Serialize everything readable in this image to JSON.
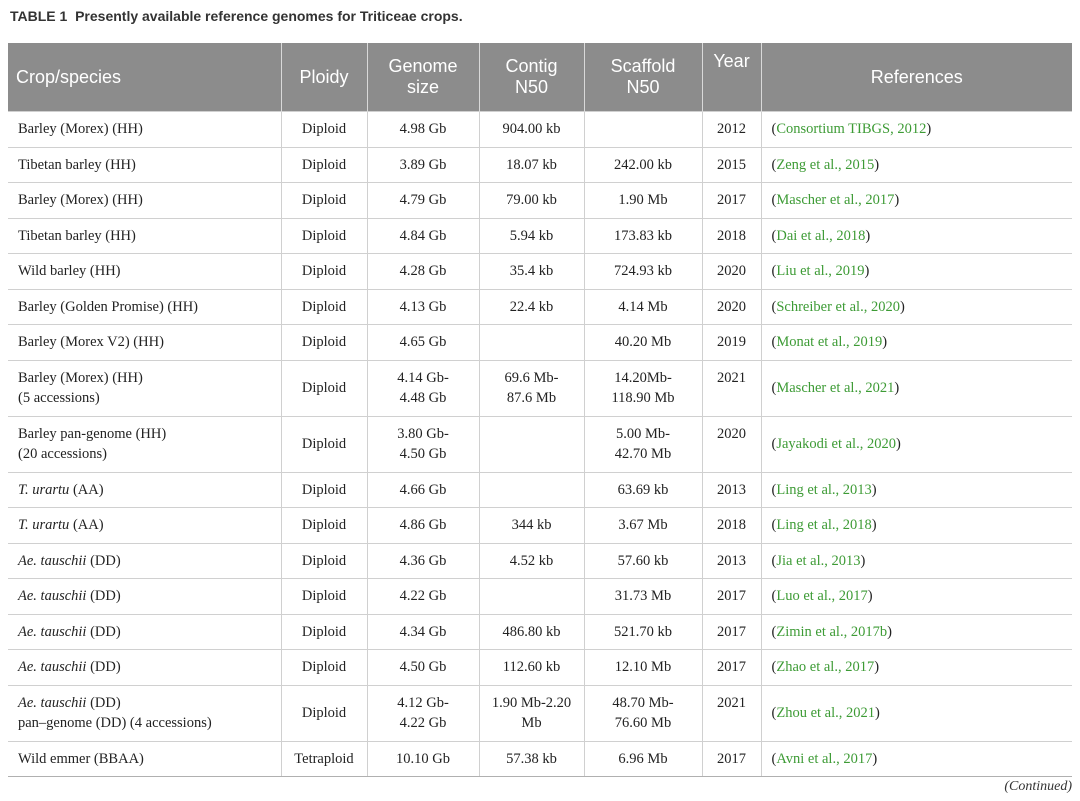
{
  "caption": {
    "label": "TABLE 1",
    "title": "Presently available reference genomes for Triticeae crops."
  },
  "headers": {
    "crop": "Crop/species",
    "ploidy": "Ploidy",
    "genome1": "Genome",
    "genome2": "size",
    "contig1": "Contig",
    "contig2": "N50",
    "scaffold1": "Scaffold",
    "scaffold2": "N50",
    "year": "Year",
    "refs": "References"
  },
  "rows": [
    {
      "crop_it": "",
      "crop1": "Barley (Morex) (HH)",
      "crop2": "",
      "ploidy": "Diploid",
      "genome1": "4.98 Gb",
      "genome2": "",
      "contig1": "904.00 kb",
      "contig2": "",
      "scaffold1": "",
      "scaffold2": "",
      "year": "2012",
      "ref": "Consortium TIBGS, 2012"
    },
    {
      "crop_it": "",
      "crop1": "Tibetan barley (HH)",
      "crop2": "",
      "ploidy": "Diploid",
      "genome1": "3.89 Gb",
      "genome2": "",
      "contig1": "18.07 kb",
      "contig2": "",
      "scaffold1": "242.00 kb",
      "scaffold2": "",
      "year": "2015",
      "ref": "Zeng et al., 2015"
    },
    {
      "crop_it": "",
      "crop1": "Barley (Morex) (HH)",
      "crop2": "",
      "ploidy": "Diploid",
      "genome1": "4.79 Gb",
      "genome2": "",
      "contig1": "79.00 kb",
      "contig2": "",
      "scaffold1": "1.90 Mb",
      "scaffold2": "",
      "year": "2017",
      "ref": "Mascher et al., 2017"
    },
    {
      "crop_it": "",
      "crop1": "Tibetan barley (HH)",
      "crop2": "",
      "ploidy": "Diploid",
      "genome1": "4.84 Gb",
      "genome2": "",
      "contig1": "5.94 kb",
      "contig2": "",
      "scaffold1": "173.83 kb",
      "scaffold2": "",
      "year": "2018",
      "ref": "Dai et al., 2018"
    },
    {
      "crop_it": "",
      "crop1": "Wild barley (HH)",
      "crop2": "",
      "ploidy": "Diploid",
      "genome1": "4.28 Gb",
      "genome2": "",
      "contig1": "35.4 kb",
      "contig2": "",
      "scaffold1": "724.93 kb",
      "scaffold2": "",
      "year": "2020",
      "ref": "Liu et al., 2019"
    },
    {
      "crop_it": "",
      "crop1": "Barley (Golden Promise) (HH)",
      "crop2": "",
      "ploidy": "Diploid",
      "genome1": "4.13 Gb",
      "genome2": "",
      "contig1": "22.4 kb",
      "contig2": "",
      "scaffold1": "4.14 Mb",
      "scaffold2": "",
      "year": "2020",
      "ref": "Schreiber et al., 2020"
    },
    {
      "crop_it": "",
      "crop1": "Barley (Morex V2) (HH)",
      "crop2": "",
      "ploidy": "Diploid",
      "genome1": "4.65 Gb",
      "genome2": "",
      "contig1": "",
      "contig2": "",
      "scaffold1": "40.20 Mb",
      "scaffold2": "",
      "year": "2019",
      "ref": "Monat et al., 2019"
    },
    {
      "crop_it": "",
      "crop1": "Barley (Morex) (HH)",
      "crop2": "(5 accessions)",
      "ploidy": "Diploid",
      "genome1": "4.14 Gb-",
      "genome2": "4.48 Gb",
      "contig1": "69.6 Mb-",
      "contig2": "87.6 Mb",
      "scaffold1": "14.20Mb-",
      "scaffold2": "118.90 Mb",
      "year": "2021",
      "ref": "Mascher et al., 2021"
    },
    {
      "crop_it": "",
      "crop1": "Barley pan-genome (HH)",
      "crop2": "(20 accessions)",
      "ploidy": "Diploid",
      "genome1": "3.80 Gb-",
      "genome2": "4.50 Gb",
      "contig1": "",
      "contig2": "",
      "scaffold1": "5.00 Mb-",
      "scaffold2": "42.70 Mb",
      "year": "2020",
      "ref": "Jayakodi et al., 2020"
    },
    {
      "crop_it": "T. urartu",
      "crop1": " (AA)",
      "crop2": "",
      "ploidy": "Diploid",
      "genome1": "4.66 Gb",
      "genome2": "",
      "contig1": "",
      "contig2": "",
      "scaffold1": "63.69 kb",
      "scaffold2": "",
      "year": "2013",
      "ref": "Ling et al., 2013"
    },
    {
      "crop_it": "T. urartu",
      "crop1": " (AA)",
      "crop2": "",
      "ploidy": "Diploid",
      "genome1": "4.86 Gb",
      "genome2": "",
      "contig1": "344 kb",
      "contig2": "",
      "scaffold1": "3.67 Mb",
      "scaffold2": "",
      "year": "2018",
      "ref": "Ling et al., 2018"
    },
    {
      "crop_it": "Ae. tauschii",
      "crop1": " (DD)",
      "crop2": "",
      "ploidy": "Diploid",
      "genome1": "4.36 Gb",
      "genome2": "",
      "contig1": "4.52 kb",
      "contig2": "",
      "scaffold1": "57.60 kb",
      "scaffold2": "",
      "year": "2013",
      "ref": "Jia et al., 2013"
    },
    {
      "crop_it": "Ae. tauschii",
      "crop1": " (DD)",
      "crop2": "",
      "ploidy": "Diploid",
      "genome1": "4.22 Gb",
      "genome2": "",
      "contig1": "",
      "contig2": "",
      "scaffold1": "31.73 Mb",
      "scaffold2": "",
      "year": "2017",
      "ref": "Luo et al., 2017"
    },
    {
      "crop_it": "Ae. tauschii",
      "crop1": " (DD)",
      "crop2": "",
      "ploidy": "Diploid",
      "genome1": "4.34 Gb",
      "genome2": "",
      "contig1": "486.80 kb",
      "contig2": "",
      "scaffold1": "521.70 kb",
      "scaffold2": "",
      "year": "2017",
      "ref": "Zimin et al., 2017b"
    },
    {
      "crop_it": "Ae. tauschii",
      "crop1": " (DD)",
      "crop2": "",
      "ploidy": "Diploid",
      "genome1": "4.50 Gb",
      "genome2": "",
      "contig1": "112.60 kb",
      "contig2": "",
      "scaffold1": "12.10 Mb",
      "scaffold2": "",
      "year": "2017",
      "ref": "Zhao et al., 2017"
    },
    {
      "crop_it": "Ae. tauschii",
      "crop1": " (DD)",
      "crop2": "pan–genome (DD) (4 accessions)",
      "ploidy": "Diploid",
      "genome1": "4.12 Gb-",
      "genome2": "4.22 Gb",
      "contig1": "1.90 Mb-2.20",
      "contig2": "Mb",
      "scaffold1": "48.70 Mb-",
      "scaffold2": "76.60 Mb",
      "year": "2021",
      "ref": "Zhou et al., 2021"
    },
    {
      "crop_it": "",
      "crop1": "Wild emmer (BBAA)",
      "crop2": "",
      "ploidy": "Tetraploid",
      "genome1": "10.10 Gb",
      "genome2": "",
      "contig1": "57.38 kb",
      "contig2": "",
      "scaffold1": "6.96 Mb",
      "scaffold2": "",
      "year": "2017",
      "ref": "Avni et al., 2017"
    }
  ],
  "footer": {
    "continued": "(Continued)"
  },
  "colors": {
    "header_bg": "#8c8c8c",
    "link": "#3d9b35"
  }
}
